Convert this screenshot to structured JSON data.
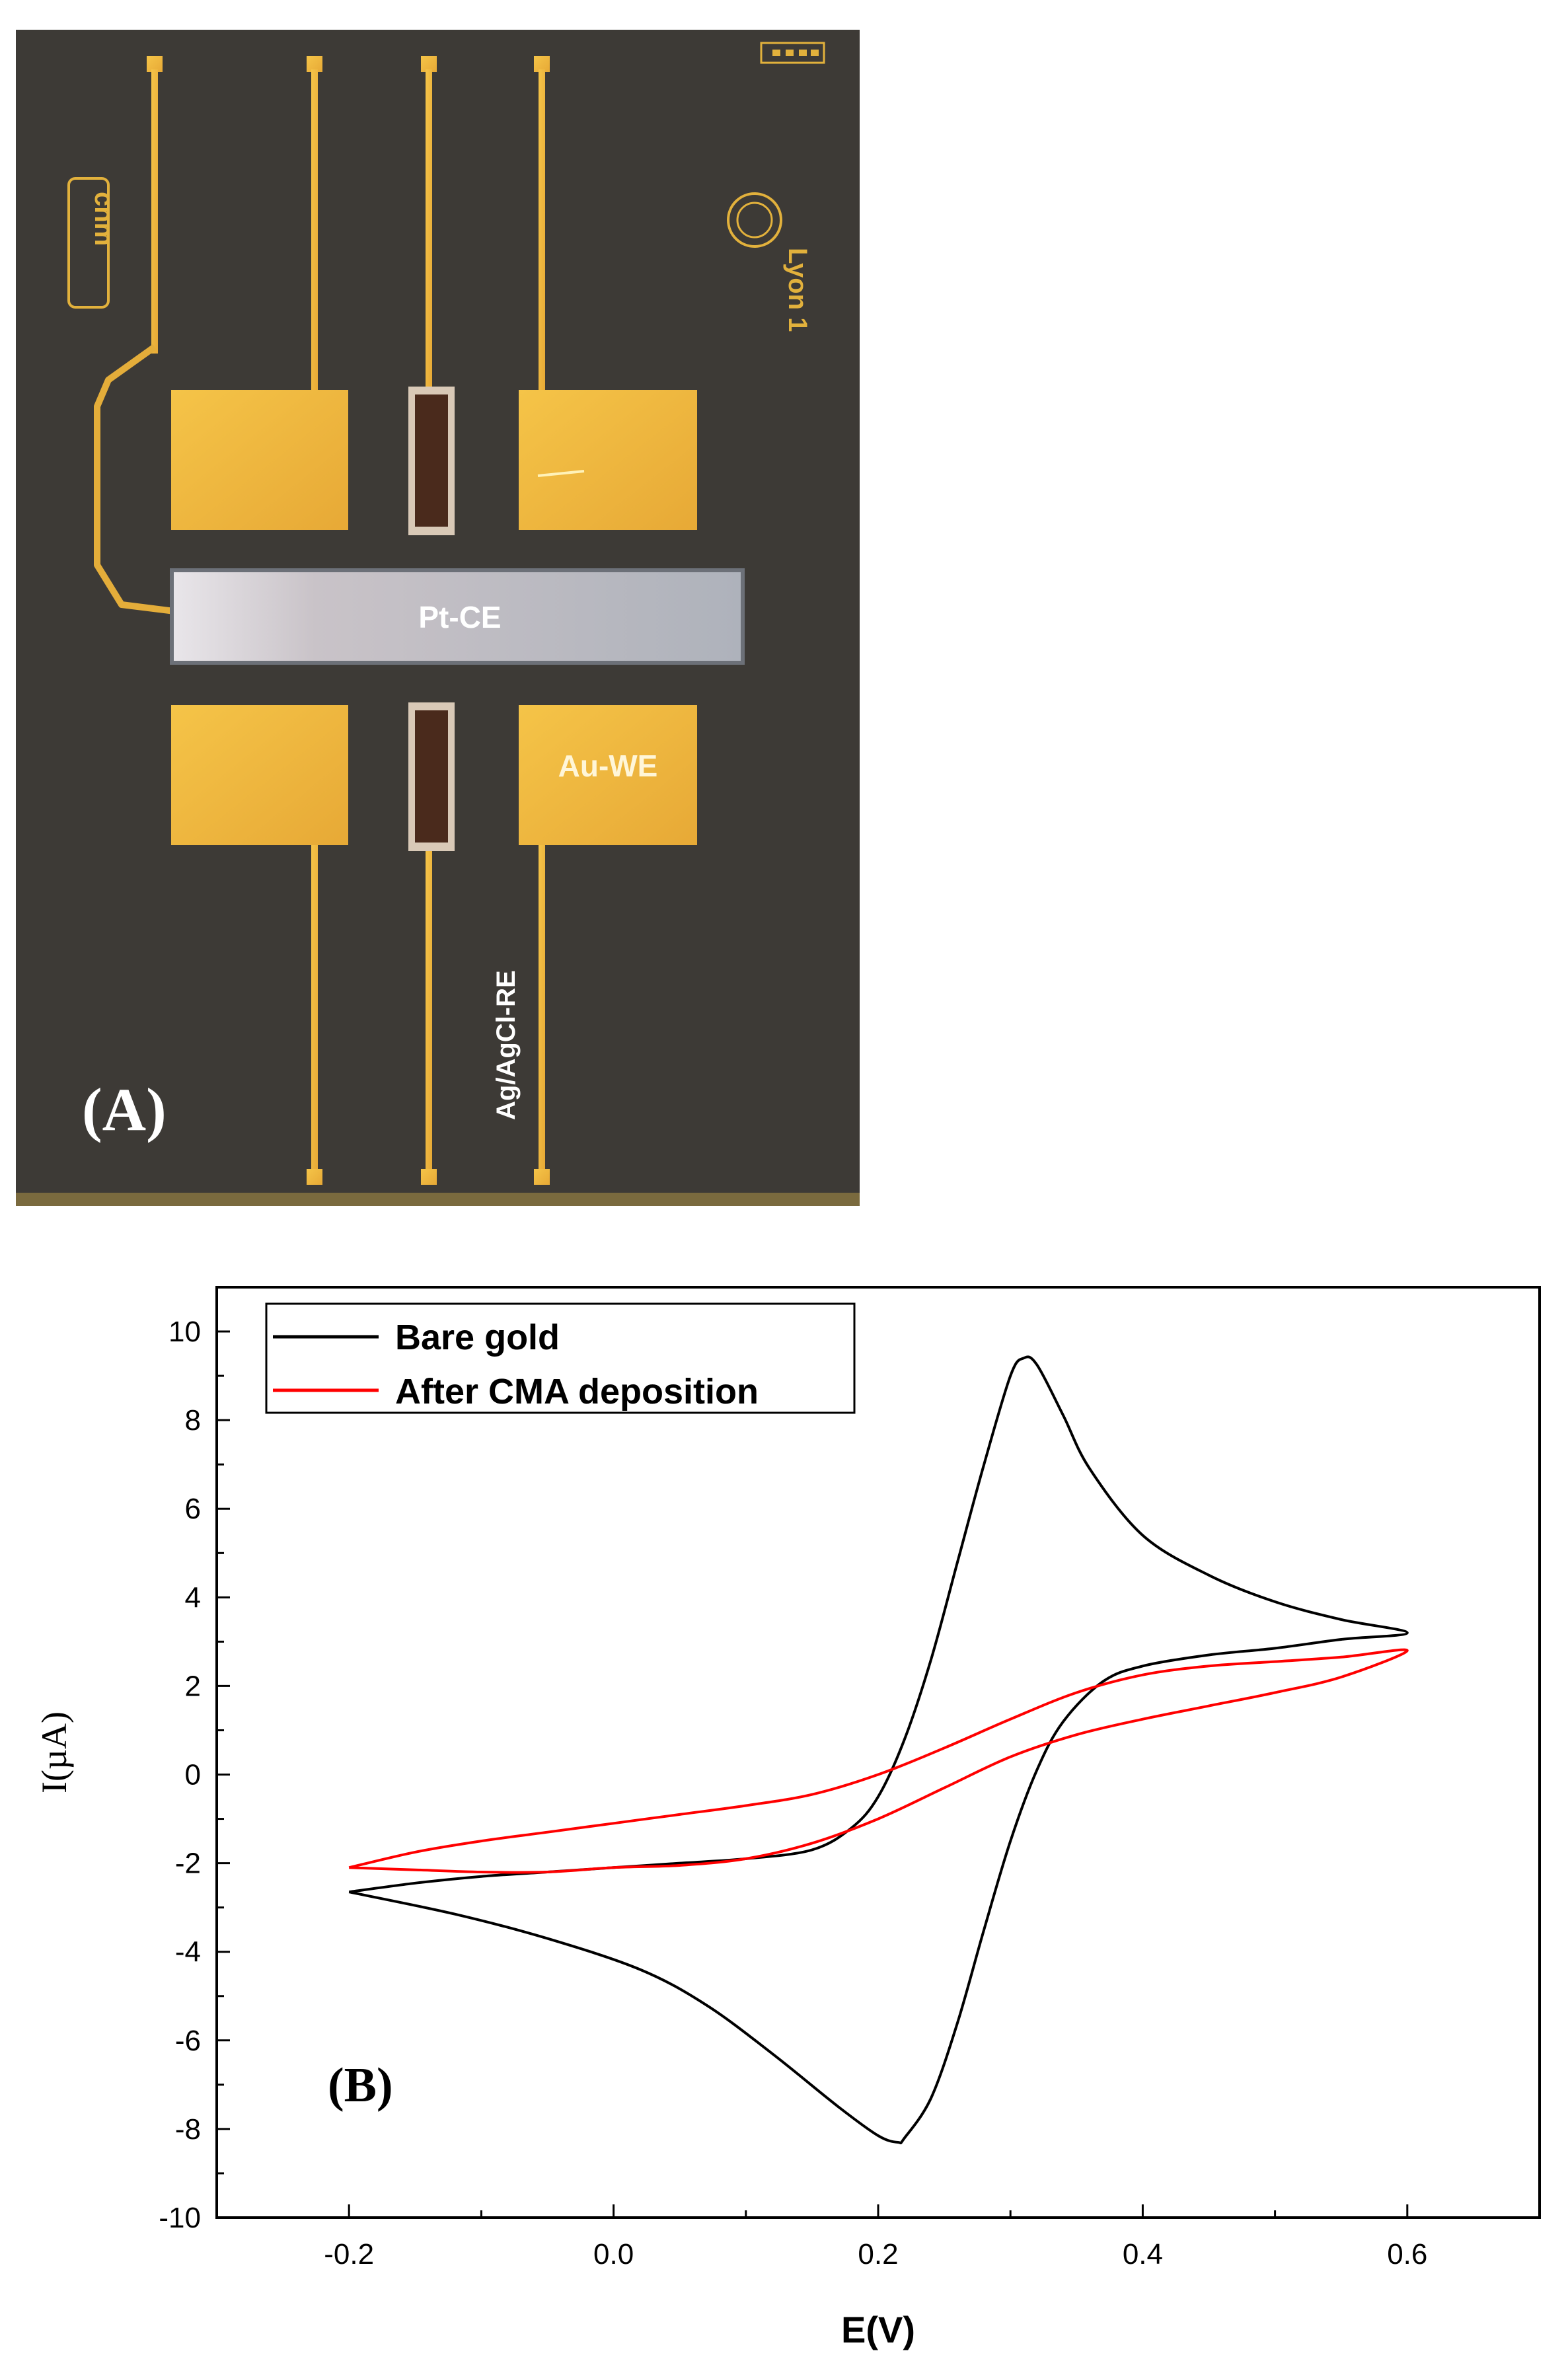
{
  "panel_a": {
    "panel_label": "(A)",
    "electrode_labels": {
      "counter": "Pt-CE",
      "working": "Au-WE",
      "reference": "Ag/AgCl-RE"
    },
    "logo_text": {
      "left": "cnm",
      "right": "Lyon 1"
    },
    "colors": {
      "substrate": "#3d3a36",
      "gold": "#f2bc3d",
      "platinum": "#b9bdc6",
      "silver_chloride": "#4a2a1c"
    }
  },
  "chart_data": {
    "type": "line",
    "panel_label": "(B)",
    "title": "",
    "xlabel": "E(V)",
    "ylabel": "I(µA)",
    "xlim": [
      -0.3,
      0.7
    ],
    "ylim": [
      -10,
      11
    ],
    "xticks": [
      -0.2,
      0.0,
      0.2,
      0.4,
      0.6
    ],
    "xtick_labels": [
      "-0.2",
      "0.0",
      "0.2",
      "0.4",
      "0.6"
    ],
    "yticks": [
      -10,
      -8,
      -6,
      -4,
      -2,
      0,
      2,
      4,
      6,
      8,
      10
    ],
    "ytick_labels": [
      "-10",
      "-8",
      "-6",
      "-4",
      "-2",
      "0",
      "2",
      "4",
      "6",
      "8",
      "10"
    ],
    "grid": false,
    "legend_position": "top-left",
    "series": [
      {
        "name": "Bare gold",
        "color": "#000000",
        "points": [
          [
            -0.2,
            -2.65
          ],
          [
            -0.15,
            -2.45
          ],
          [
            -0.1,
            -2.3
          ],
          [
            -0.05,
            -2.2
          ],
          [
            0.0,
            -2.1
          ],
          [
            0.05,
            -2.0
          ],
          [
            0.1,
            -1.9
          ],
          [
            0.15,
            -1.7
          ],
          [
            0.18,
            -1.2
          ],
          [
            0.2,
            -0.5
          ],
          [
            0.22,
            0.8
          ],
          [
            0.24,
            2.6
          ],
          [
            0.26,
            4.8
          ],
          [
            0.28,
            7.0
          ],
          [
            0.3,
            9.0
          ],
          [
            0.31,
            9.4
          ],
          [
            0.32,
            9.25
          ],
          [
            0.34,
            8.1
          ],
          [
            0.36,
            6.9
          ],
          [
            0.4,
            5.4
          ],
          [
            0.45,
            4.5
          ],
          [
            0.5,
            3.9
          ],
          [
            0.55,
            3.5
          ],
          [
            0.6,
            3.2
          ],
          [
            0.55,
            3.05
          ],
          [
            0.5,
            2.85
          ],
          [
            0.45,
            2.7
          ],
          [
            0.4,
            2.45
          ],
          [
            0.37,
            2.1
          ],
          [
            0.34,
            1.2
          ],
          [
            0.32,
            0.1
          ],
          [
            0.3,
            -1.5
          ],
          [
            0.28,
            -3.5
          ],
          [
            0.26,
            -5.6
          ],
          [
            0.24,
            -7.3
          ],
          [
            0.22,
            -8.2
          ],
          [
            0.215,
            -8.3
          ],
          [
            0.2,
            -8.15
          ],
          [
            0.17,
            -7.5
          ],
          [
            0.12,
            -6.3
          ],
          [
            0.07,
            -5.2
          ],
          [
            0.02,
            -4.4
          ],
          [
            -0.05,
            -3.7
          ],
          [
            -0.12,
            -3.15
          ],
          [
            -0.2,
            -2.65
          ]
        ]
      },
      {
        "name": "After CMA deposition",
        "color": "#ff0000",
        "points": [
          [
            -0.2,
            -2.1
          ],
          [
            -0.15,
            -1.75
          ],
          [
            -0.1,
            -1.5
          ],
          [
            -0.05,
            -1.3
          ],
          [
            0.0,
            -1.1
          ],
          [
            0.05,
            -0.9
          ],
          [
            0.1,
            -0.7
          ],
          [
            0.15,
            -0.45
          ],
          [
            0.2,
            0.0
          ],
          [
            0.25,
            0.6
          ],
          [
            0.3,
            1.25
          ],
          [
            0.35,
            1.85
          ],
          [
            0.4,
            2.25
          ],
          [
            0.45,
            2.45
          ],
          [
            0.5,
            2.55
          ],
          [
            0.55,
            2.65
          ],
          [
            0.6,
            2.8
          ],
          [
            0.55,
            2.2
          ],
          [
            0.5,
            1.85
          ],
          [
            0.45,
            1.55
          ],
          [
            0.4,
            1.25
          ],
          [
            0.35,
            0.9
          ],
          [
            0.3,
            0.4
          ],
          [
            0.25,
            -0.3
          ],
          [
            0.2,
            -1.0
          ],
          [
            0.15,
            -1.55
          ],
          [
            0.1,
            -1.9
          ],
          [
            0.05,
            -2.05
          ],
          [
            0.0,
            -2.1
          ],
          [
            -0.05,
            -2.2
          ],
          [
            -0.1,
            -2.2
          ],
          [
            -0.15,
            -2.15
          ],
          [
            -0.2,
            -2.1
          ]
        ]
      }
    ]
  }
}
